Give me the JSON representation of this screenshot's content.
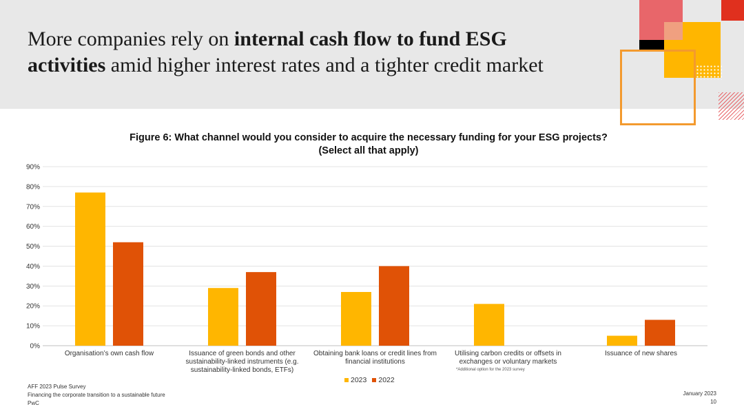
{
  "header": {
    "title_part1": "More companies rely on ",
    "title_bold1": "internal cash flow to fund ESG",
    "title_bold2": "activities",
    "title_part2": " amid higher interest rates and a tighter credit market"
  },
  "chart_data": {
    "type": "bar",
    "title_line1": "Figure 6: What channel would you consider to acquire the necessary funding for your ESG projects?",
    "title_line2": "(Select all that apply)",
    "categories": [
      "Organisation’s own cash flow",
      "Issuance of green bonds and other sustainability-linked instruments (e.g. sustainability-linked bonds, ETFs)",
      "Obtaining bank loans or credit lines from financial institutions",
      "Utilising carbon credits or offsets in exchanges or voluntary markets",
      "Issuance of new shares"
    ],
    "series": [
      {
        "name": "2023",
        "color": "#FFB600",
        "values": [
          77,
          29,
          27,
          21,
          5
        ]
      },
      {
        "name": "2022",
        "color": "#E05206",
        "values": [
          52,
          37,
          40,
          null,
          13
        ]
      }
    ],
    "ylim": [
      0,
      90
    ],
    "yticks": [
      "0%",
      "10%",
      "20%",
      "30%",
      "40%",
      "50%",
      "60%",
      "70%",
      "80%",
      "90%"
    ],
    "grid": true,
    "legend_position": "bottom",
    "footnote": "*Additional option for the 2023 survey"
  },
  "footer": {
    "source_line1": "AFF 2023 Pulse Survey",
    "source_line2": "Financing the corporate transition to a sustainable future",
    "source_line3": "PwC",
    "date": "January 2023",
    "page_number": "10"
  },
  "colors": {
    "header_bg": "#e8e8e8",
    "accent_pink": "#E8666A",
    "accent_orange": "#E05206",
    "accent_yellow": "#FFB600"
  }
}
